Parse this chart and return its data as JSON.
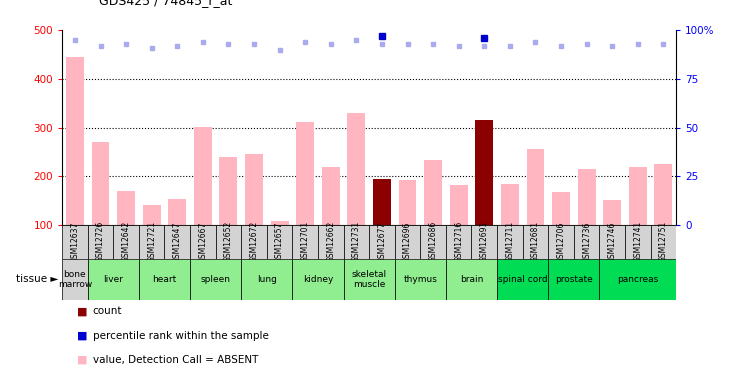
{
  "title": "GDS425 / 74845_r_at",
  "samples": [
    "GSM12637",
    "GSM12726",
    "GSM12642",
    "GSM12721",
    "GSM12647",
    "GSM12667",
    "GSM12652",
    "GSM12672",
    "GSM12657",
    "GSM12701",
    "GSM12662",
    "GSM12731",
    "GSM12677",
    "GSM12696",
    "GSM12686",
    "GSM12716",
    "GSM12691",
    "GSM12711",
    "GSM12681",
    "GSM12706",
    "GSM12736",
    "GSM12746",
    "GSM12741",
    "GSM12751"
  ],
  "values": [
    445,
    270,
    170,
    142,
    153,
    302,
    240,
    245,
    108,
    312,
    220,
    330,
    195,
    192,
    233,
    182,
    315,
    185,
    256,
    168,
    214,
    152,
    219,
    225
  ],
  "is_highlighted": [
    false,
    false,
    false,
    false,
    false,
    false,
    false,
    false,
    false,
    false,
    false,
    false,
    true,
    false,
    false,
    false,
    true,
    false,
    false,
    false,
    false,
    false,
    false,
    false
  ],
  "percentile_ranks": [
    95,
    92,
    93,
    91,
    92,
    94,
    93,
    93,
    90,
    94,
    93,
    95,
    97,
    93,
    93,
    92,
    96,
    92,
    94,
    92,
    93,
    92,
    93,
    93
  ],
  "rank_absent": [
    95,
    92,
    93,
    91,
    92,
    94,
    93,
    93,
    90,
    94,
    93,
    95,
    93,
    93,
    93,
    92,
    92,
    92,
    94,
    92,
    93,
    92,
    93,
    93
  ],
  "tissues": [
    {
      "label": "bone\nmarrow",
      "start": 0,
      "end": 1,
      "color": "#d3d3d3"
    },
    {
      "label": "liver",
      "start": 1,
      "end": 3,
      "color": "#90EE90"
    },
    {
      "label": "heart",
      "start": 3,
      "end": 5,
      "color": "#90EE90"
    },
    {
      "label": "spleen",
      "start": 5,
      "end": 7,
      "color": "#90EE90"
    },
    {
      "label": "lung",
      "start": 7,
      "end": 9,
      "color": "#90EE90"
    },
    {
      "label": "kidney",
      "start": 9,
      "end": 11,
      "color": "#90EE90"
    },
    {
      "label": "skeletal\nmuscle",
      "start": 11,
      "end": 13,
      "color": "#90EE90"
    },
    {
      "label": "thymus",
      "start": 13,
      "end": 15,
      "color": "#90EE90"
    },
    {
      "label": "brain",
      "start": 15,
      "end": 17,
      "color": "#90EE90"
    },
    {
      "label": "spinal cord",
      "start": 17,
      "end": 19,
      "color": "#00dd55"
    },
    {
      "label": "prostate",
      "start": 19,
      "end": 21,
      "color": "#00dd55"
    },
    {
      "label": "pancreas",
      "start": 21,
      "end": 24,
      "color": "#00dd55"
    }
  ],
  "bar_color_normal": "#FFB6C1",
  "bar_color_highlight": "#8B0000",
  "dot_color_blue": "#0000CD",
  "dot_color_lightblue": "#AAAAEE",
  "dot_color_lightpink": "#FFB6C1",
  "ylim_left": [
    100,
    500
  ],
  "ylim_right": [
    0,
    100
  ],
  "yticks_left": [
    100,
    200,
    300,
    400,
    500
  ],
  "yticks_right": [
    0,
    25,
    50,
    75,
    100
  ],
  "ytick_right_labels": [
    "0",
    "25",
    "50",
    "75",
    "100%"
  ],
  "background_color": "#ffffff",
  "sample_box_color": "#d3d3d3"
}
